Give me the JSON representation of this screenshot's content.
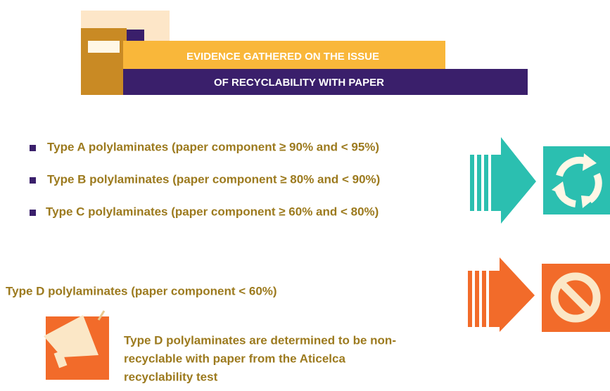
{
  "header": {
    "line1": "EVIDENCE GATHERED ON THE ISSUE",
    "line2": "OF RECYCLABILITY WITH PAPER"
  },
  "recyclable": [
    "Type A polylaminates (paper component ≥ 90% and < 95%)",
    "Type B polylaminates (paper component ≥ 80% and < 90%)",
    "Type C polylaminates (paper component ≥ 60% and < 80%)"
  ],
  "non_recyclable": {
    "title": "Type D polylaminates (paper component < 60%)",
    "note": [
      "Type D polylaminates are determined to be non-",
      "recyclable with paper from the Aticelca",
      "recyclability test"
    ]
  }
}
